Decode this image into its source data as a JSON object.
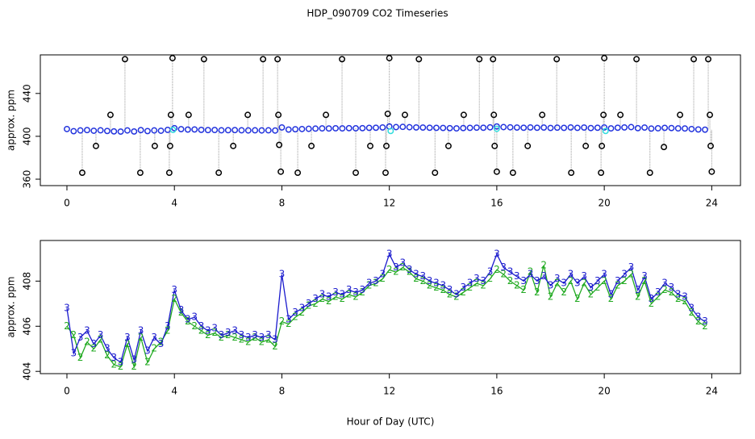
{
  "chart_data": [
    {
      "type": "scatter",
      "title": "HDP_090709  CO2 Timeseries",
      "ylabel": "approx. ppm",
      "xlim": [
        -0.99,
        25.07
      ],
      "ylim": [
        354,
        476
      ],
      "xticks": [
        0,
        4,
        8,
        12,
        16,
        20,
        24
      ],
      "yticks": [
        360,
        400,
        440
      ],
      "series": [
        {
          "color": "#000000",
          "marker": "circle",
          "x": [
            2.16,
            3.93,
            5.1,
            7.3,
            7.84,
            10.24,
            12.0,
            13.1,
            15.35,
            15.86,
            18.23,
            20.0,
            21.2,
            23.33,
            23.87,
            0.57,
            2.73,
            3.81,
            5.65,
            7.96,
            8.59,
            10.75,
            11.86,
            13.7,
            16.0,
            16.6,
            18.77,
            19.88,
            21.7,
            24.0,
            1.62,
            3.87,
            4.53,
            6.73,
            7.87,
            9.64,
            11.94,
            12.58,
            14.77,
            15.89,
            17.69,
            19.97,
            20.6,
            22.82,
            23.93,
            1.08,
            3.27,
            3.84,
            6.19,
            7.9,
            9.1,
            11.29,
            11.89,
            14.2,
            15.92,
            17.15,
            19.31,
            19.91,
            22.22,
            23.96
          ],
          "values": [
            472,
            473,
            472,
            472,
            472,
            472,
            473,
            472,
            472,
            472,
            472,
            473,
            472,
            472,
            472,
            366,
            366,
            366,
            366,
            367,
            366,
            366,
            366,
            366,
            367,
            366,
            366,
            366,
            366,
            367,
            420,
            420,
            420,
            420,
            420,
            420,
            421,
            420,
            420,
            420,
            420,
            420,
            420,
            420,
            420,
            391,
            391,
            391,
            391,
            392,
            391,
            391,
            391,
            391,
            391,
            391,
            391,
            391,
            390,
            391
          ]
        },
        {
          "color": "#2233dd",
          "marker": "circle",
          "x": [
            0,
            0.25,
            0.5,
            0.75,
            1,
            1.25,
            1.5,
            1.75,
            2,
            2.25,
            2.5,
            2.75,
            3,
            3.25,
            3.5,
            3.75,
            4,
            4.25,
            4.5,
            4.75,
            5,
            5.25,
            5.5,
            5.75,
            6,
            6.25,
            6.5,
            6.75,
            7,
            7.25,
            7.5,
            7.75,
            8,
            8.25,
            8.5,
            8.75,
            9,
            9.25,
            9.5,
            9.75,
            10,
            10.25,
            10.5,
            10.75,
            11,
            11.25,
            11.5,
            11.75,
            12,
            12.25,
            12.5,
            12.75,
            13,
            13.25,
            13.5,
            13.75,
            14,
            14.25,
            14.5,
            14.75,
            15,
            15.25,
            15.5,
            15.75,
            16,
            16.25,
            16.5,
            16.75,
            17,
            17.25,
            17.5,
            17.75,
            18,
            18.25,
            18.5,
            18.75,
            19,
            19.25,
            19.5,
            19.75,
            20,
            20.25,
            20.5,
            20.75,
            21,
            21.25,
            21.5,
            21.75,
            22,
            22.25,
            22.5,
            22.75,
            23,
            23.25,
            23.5,
            23.75
          ],
          "values": [
            406.8,
            404.8,
            405.5,
            405.8,
            405.2,
            405.6,
            405.0,
            404.6,
            404.4,
            405.5,
            404.5,
            405.8,
            404.9,
            405.5,
            405.2,
            406.0,
            407.6,
            406.7,
            406.3,
            406.4,
            406.0,
            405.8,
            405.9,
            405.6,
            405.7,
            405.8,
            405.6,
            405.5,
            405.6,
            405.5,
            405.6,
            405.4,
            408.3,
            406.3,
            406.6,
            406.8,
            407.0,
            407.2,
            407.4,
            407.3,
            407.5,
            407.4,
            407.6,
            407.5,
            407.6,
            407.9,
            408.0,
            408.3,
            409.2,
            408.6,
            408.8,
            408.5,
            408.3,
            408.2,
            408.0,
            407.9,
            407.8,
            407.6,
            407.4,
            407.7,
            407.9,
            408.1,
            408.0,
            408.4,
            409.2,
            408.6,
            408.4,
            408.2,
            408.0,
            408.3,
            408.0,
            408.2,
            407.8,
            408.1,
            407.9,
            408.3,
            407.9,
            408.2,
            407.7,
            408.0,
            408.3,
            407.4,
            408.0,
            408.3,
            408.6,
            407.6,
            408.2,
            407.2,
            407.5,
            407.9,
            407.7,
            407.4,
            407.3,
            406.8,
            406.4,
            406.2
          ]
        },
        {
          "color": "#33dddd",
          "marker": "circle",
          "x": [
            3.95,
            12.05,
            16.0,
            20.05
          ],
          "values": [
            406,
            405,
            407,
            405
          ]
        }
      ]
    },
    {
      "type": "line",
      "ylabel": "approx. ppm",
      "xlabel": "Hour of Day (UTC)",
      "xlim": [
        -0.99,
        25.07
      ],
      "ylim": [
        403.9,
        409.8
      ],
      "xticks": [
        0,
        4,
        8,
        12,
        16,
        20,
        24
      ],
      "yticks": [
        404,
        406,
        408
      ],
      "x": [
        0,
        0.25,
        0.5,
        0.75,
        1,
        1.25,
        1.5,
        1.75,
        2,
        2.25,
        2.5,
        2.75,
        3,
        3.25,
        3.5,
        3.75,
        4,
        4.25,
        4.5,
        4.75,
        5,
        5.25,
        5.5,
        5.75,
        6,
        6.25,
        6.5,
        6.75,
        7,
        7.25,
        7.5,
        7.75,
        8,
        8.25,
        8.5,
        8.75,
        9,
        9.25,
        9.5,
        9.75,
        10,
        10.25,
        10.5,
        10.75,
        11,
        11.25,
        11.5,
        11.75,
        12,
        12.25,
        12.5,
        12.75,
        13,
        13.25,
        13.5,
        13.75,
        14,
        14.25,
        14.5,
        14.75,
        15,
        15.25,
        15.5,
        15.75,
        16,
        16.25,
        16.5,
        16.75,
        17,
        17.25,
        17.5,
        17.75,
        18,
        18.25,
        18.5,
        18.75,
        19,
        19.25,
        19.5,
        19.75,
        20,
        20.25,
        20.5,
        20.75,
        21,
        21.25,
        21.5,
        21.75,
        22,
        22.25,
        22.5,
        22.75,
        23,
        23.25,
        23.5,
        23.75
      ],
      "series": [
        {
          "color": "#22aa22",
          "marker": "2",
          "values": [
            406.0,
            405.6,
            404.6,
            405.3,
            405.0,
            405.4,
            404.7,
            404.3,
            404.2,
            405.2,
            404.2,
            405.5,
            404.4,
            405.0,
            405.3,
            405.8,
            407.2,
            406.6,
            406.2,
            406.0,
            405.8,
            405.6,
            405.7,
            405.5,
            405.6,
            405.5,
            405.4,
            405.3,
            405.5,
            405.3,
            405.4,
            405.1,
            406.2,
            406.1,
            406.4,
            406.6,
            406.9,
            407.0,
            407.2,
            407.1,
            407.3,
            407.2,
            407.4,
            407.3,
            407.5,
            407.8,
            407.9,
            408.1,
            408.5,
            408.4,
            408.6,
            408.4,
            408.1,
            408.0,
            407.8,
            407.7,
            407.6,
            407.4,
            407.3,
            407.5,
            407.7,
            407.9,
            407.8,
            408.1,
            408.5,
            408.3,
            408.0,
            407.8,
            407.6,
            408.4,
            407.5,
            408.7,
            407.3,
            407.9,
            407.5,
            408.0,
            407.2,
            407.9,
            407.4,
            407.7,
            408.0,
            407.2,
            407.8,
            408.0,
            408.3,
            407.3,
            408.0,
            407.0,
            407.3,
            407.6,
            407.5,
            407.2,
            407.1,
            406.6,
            406.2,
            406.0
          ]
        },
        {
          "color": "#1a1acd",
          "marker": "3",
          "values": [
            406.8,
            404.8,
            405.5,
            405.8,
            405.2,
            405.6,
            405.0,
            404.6,
            404.4,
            405.5,
            404.5,
            405.8,
            404.9,
            405.5,
            405.2,
            406.0,
            407.6,
            406.7,
            406.3,
            406.4,
            406.0,
            405.8,
            405.9,
            405.6,
            405.7,
            405.8,
            405.6,
            405.5,
            405.6,
            405.5,
            405.6,
            405.4,
            408.3,
            406.3,
            406.6,
            406.8,
            407.0,
            407.2,
            407.4,
            407.3,
            407.5,
            407.4,
            407.6,
            407.5,
            407.6,
            407.9,
            408.0,
            408.3,
            409.2,
            408.6,
            408.8,
            408.5,
            408.3,
            408.2,
            408.0,
            407.9,
            407.8,
            407.6,
            407.4,
            407.7,
            407.9,
            408.1,
            408.0,
            408.4,
            409.2,
            408.6,
            408.4,
            408.2,
            408.0,
            408.3,
            408.0,
            408.2,
            407.8,
            408.1,
            407.9,
            408.3,
            407.9,
            408.2,
            407.7,
            408.0,
            408.3,
            407.4,
            408.0,
            408.3,
            408.6,
            407.6,
            408.2,
            407.2,
            407.5,
            407.9,
            407.7,
            407.4,
            407.3,
            406.8,
            406.4,
            406.2
          ]
        }
      ]
    }
  ]
}
